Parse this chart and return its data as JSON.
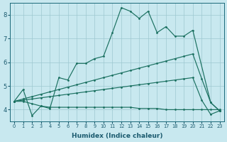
{
  "bg_color": "#c8e8ef",
  "line_color": "#1a7060",
  "grid_color": "#9ec8d0",
  "xlabel": "Humidex (Indice chaleur)",
  "ylim": [
    3.5,
    8.5
  ],
  "xlim": [
    -0.5,
    23.5
  ],
  "yticks": [
    4,
    5,
    6,
    7,
    8
  ],
  "xticks": [
    0,
    1,
    2,
    3,
    4,
    5,
    6,
    7,
    8,
    9,
    10,
    11,
    12,
    13,
    14,
    15,
    16,
    17,
    18,
    19,
    20,
    21,
    22,
    23
  ],
  "line1_x": [
    0,
    1,
    2,
    3,
    4,
    5,
    6,
    7,
    8,
    9,
    10,
    11,
    12,
    13,
    14,
    15,
    16,
    17,
    18,
    19,
    20,
    22,
    23
  ],
  "line1_y": [
    4.35,
    4.85,
    3.75,
    4.15,
    4.05,
    5.35,
    5.25,
    5.95,
    5.95,
    6.15,
    6.25,
    7.25,
    8.3,
    8.15,
    7.85,
    8.15,
    7.25,
    7.5,
    7.1,
    7.1,
    7.35,
    4.3,
    3.95
  ],
  "line2_x": [
    0,
    1,
    2,
    3,
    4,
    5,
    6,
    7,
    8,
    9,
    10,
    11,
    12,
    13,
    14,
    15,
    16,
    17,
    18,
    19,
    20,
    21,
    22,
    23
  ],
  "line2_y": [
    4.35,
    4.45,
    4.55,
    4.65,
    4.75,
    4.85,
    4.95,
    5.05,
    5.15,
    5.25,
    5.35,
    5.45,
    5.55,
    5.65,
    5.75,
    5.85,
    5.95,
    6.05,
    6.15,
    6.25,
    6.35,
    5.3,
    4.3,
    3.95
  ],
  "line3_x": [
    0,
    1,
    2,
    3,
    4,
    5,
    6,
    7,
    8,
    9,
    10,
    11,
    12,
    13,
    14,
    15,
    16,
    17,
    18,
    19,
    20,
    21,
    22,
    23
  ],
  "line3_y": [
    4.35,
    4.4,
    4.45,
    4.5,
    4.55,
    4.6,
    4.65,
    4.7,
    4.75,
    4.8,
    4.85,
    4.9,
    4.95,
    5.0,
    5.05,
    5.1,
    5.15,
    5.2,
    5.25,
    5.3,
    5.35,
    4.4,
    3.8,
    3.95
  ],
  "line4_x": [
    0,
    1,
    2,
    3,
    4,
    5,
    6,
    7,
    8,
    9,
    10,
    11,
    12,
    13,
    14,
    15,
    16,
    17,
    18,
    19,
    20,
    21,
    22,
    23
  ],
  "line4_y": [
    4.35,
    4.35,
    4.25,
    4.15,
    4.1,
    4.1,
    4.1,
    4.1,
    4.1,
    4.1,
    4.1,
    4.1,
    4.1,
    4.1,
    4.05,
    4.05,
    4.05,
    4.0,
    4.0,
    4.0,
    4.0,
    4.0,
    4.0,
    4.0
  ]
}
